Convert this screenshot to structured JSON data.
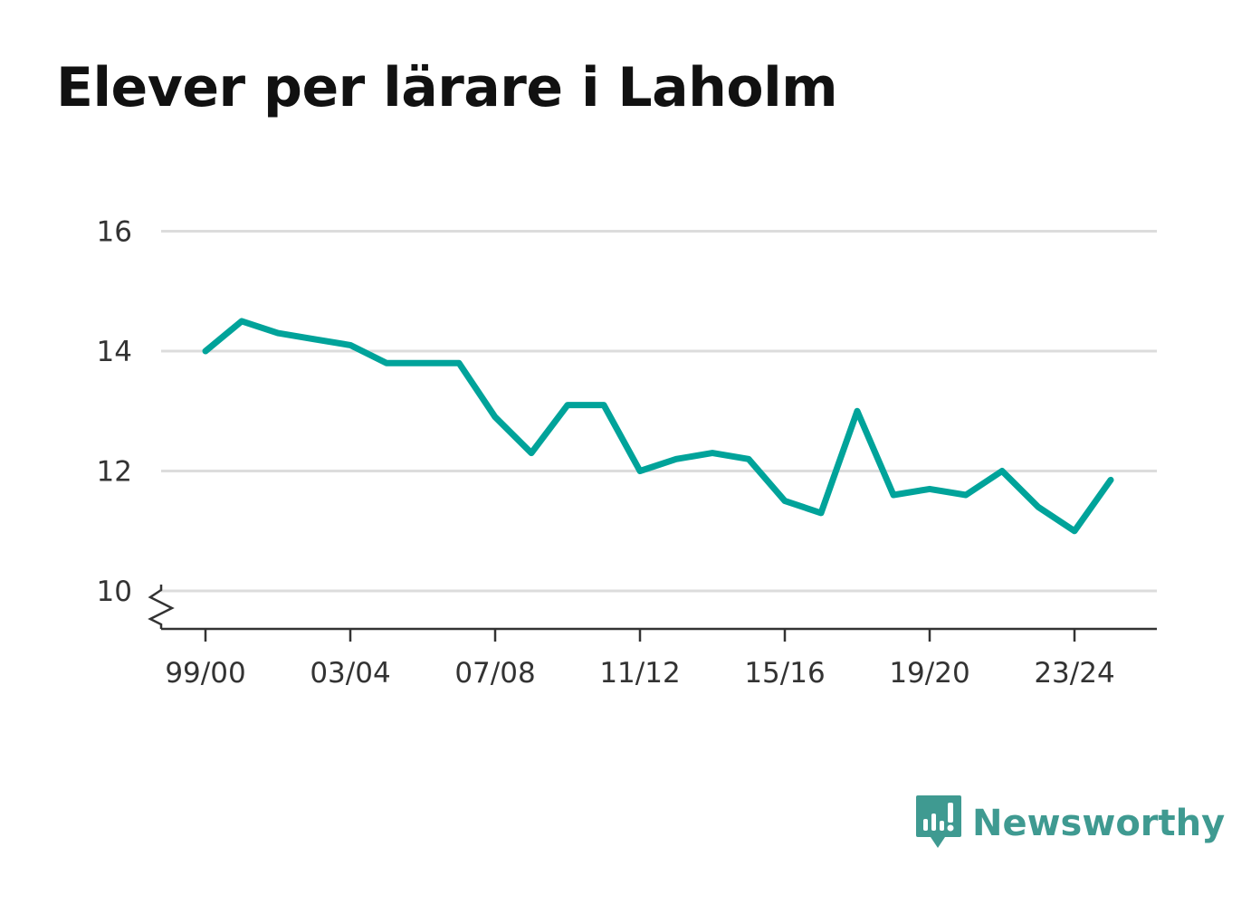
{
  "title": "Elever per lärare i Laholm",
  "brand": {
    "name": "Newsworthy",
    "icon": "newsworthy-logo-icon",
    "color": "#3f9a91"
  },
  "chart_data": {
    "type": "line",
    "title": "Elever per lärare i Laholm",
    "xlabel": "",
    "ylabel": "",
    "x": [
      "99/00",
      "00/01",
      "01/02",
      "02/03",
      "03/04",
      "04/05",
      "05/06",
      "06/07",
      "07/08",
      "08/09",
      "09/10",
      "10/11",
      "11/12",
      "12/13",
      "13/14",
      "14/15",
      "15/16",
      "16/17",
      "17/18",
      "18/19",
      "19/20",
      "20/21",
      "21/22",
      "22/23",
      "23/24",
      "24/25"
    ],
    "x_tick_labels": [
      "99/00",
      "03/04",
      "07/08",
      "11/12",
      "15/16",
      "19/20",
      "23/24"
    ],
    "y_ticks": [
      "10",
      "12",
      "14",
      "16"
    ],
    "ylim": [
      9.4,
      16
    ],
    "axis_break": true,
    "grid": true,
    "series": [
      {
        "color": "#00a39a",
        "values": [
          14.0,
          14.5,
          14.3,
          14.2,
          14.1,
          13.8,
          13.8,
          13.8,
          12.9,
          12.3,
          13.1,
          13.1,
          12.0,
          12.2,
          12.3,
          12.2,
          11.5,
          11.3,
          13.0,
          11.6,
          11.7,
          11.6,
          12.0,
          11.4,
          11.0,
          11.85
        ]
      }
    ]
  }
}
